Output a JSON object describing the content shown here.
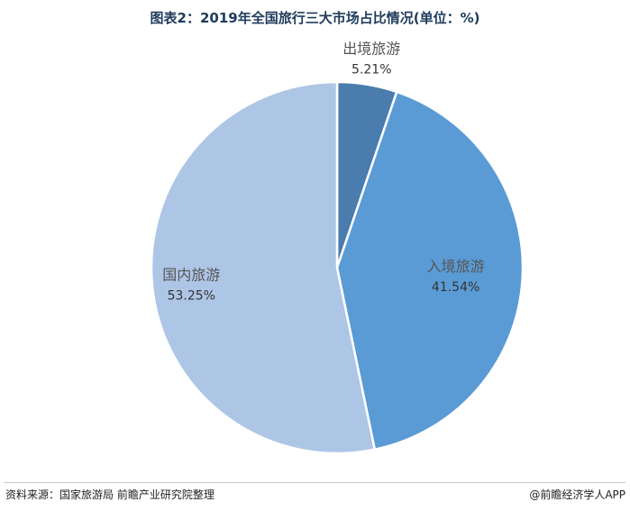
{
  "title": "图表2：2019年全国旅行三大市场占比情况(单位：%)",
  "source": "资料来源：国家旅游局 前瞻产业研究院整理",
  "credit": "@前瞻经济学人APP",
  "chart_data": {
    "type": "pie",
    "title": "图表2：2019年全国旅行三大市场占比情况(单位：%)",
    "unit": "%",
    "slices": [
      {
        "label": "出境旅游",
        "value": 5.21,
        "display": "5.21%",
        "color": "#4a7cad"
      },
      {
        "label": "入境旅游",
        "value": 41.54,
        "display": "41.54%",
        "color": "#5b9bd5"
      },
      {
        "label": "国内旅游",
        "value": 53.25,
        "display": "53.25%",
        "color": "#aec6e6"
      }
    ],
    "start_angle": "12 o'clock",
    "direction": "clockwise",
    "legend": "none",
    "labels": "on-slice"
  }
}
